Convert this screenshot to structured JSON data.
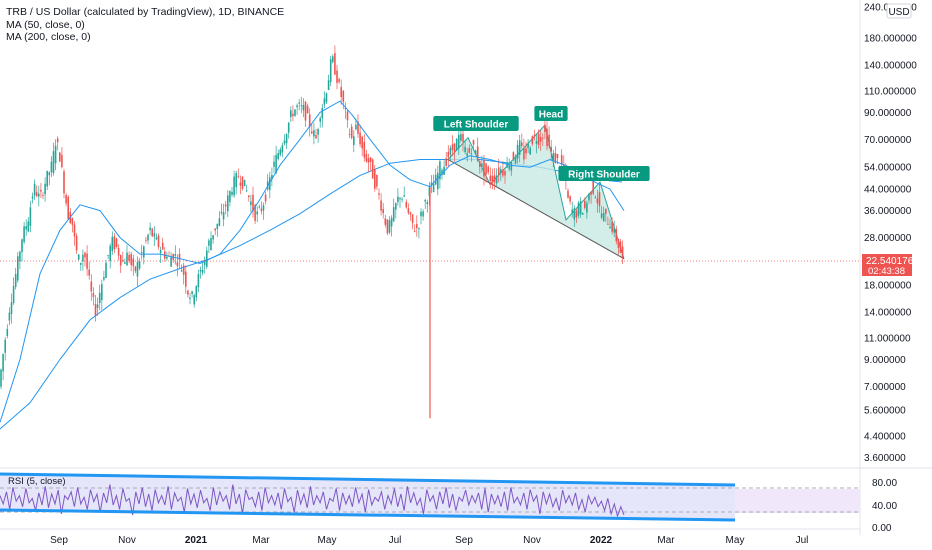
{
  "header": {
    "title": "TRB / US Dollar (calculated by TradingView), 1D, BINANCE",
    "ma50": "MA (50, close, 0)",
    "ma200": "MA (200, close, 0)"
  },
  "currency_badge": "USD",
  "rsi_label": "RSI (5, close)",
  "colors": {
    "up": "#26a69a",
    "down": "#ef5350",
    "ma50": "#2196f3",
    "ma200": "#2196f3",
    "pattern_fill": "#c8e8e2",
    "pattern_line": "#26a69a",
    "label_bg": "#089981",
    "price_tag": "#ef5350",
    "rsi_line": "#7e57c2",
    "rsi_channel": "#2196f3"
  },
  "chart_data": {
    "type": "candlestick",
    "scale": "log",
    "price_ticks": [
      "240.000000",
      "180.000000",
      "140.000000",
      "110.000000",
      "90.000000",
      "70.000000",
      "54.000000",
      "44.000000",
      "36.000000",
      "28.000000",
      "18.000000",
      "14.000000",
      "11.000000",
      "9.000000",
      "7.000000",
      "5.600000",
      "4.400000",
      "3.600000"
    ],
    "x_ticks": [
      "Sep",
      "Nov",
      "2021",
      "Mar",
      "May",
      "Jul",
      "Sep",
      "Nov",
      "2022",
      "Mar",
      "May",
      "Jul"
    ],
    "last_price": "22.540176",
    "countdown": "02:43:38",
    "pattern_labels": [
      "Left Shoulder",
      "Head",
      "Right Shoulder"
    ],
    "rsi_ticks": [
      "80.00",
      "40.00",
      "0.00"
    ],
    "price_path": [
      [
        0,
        6.5
      ],
      [
        6,
        10
      ],
      [
        12,
        15
      ],
      [
        18,
        20
      ],
      [
        24,
        28
      ],
      [
        30,
        33
      ],
      [
        36,
        45
      ],
      [
        42,
        40
      ],
      [
        48,
        48
      ],
      [
        54,
        55
      ],
      [
        58,
        70
      ],
      [
        62,
        60
      ],
      [
        66,
        45
      ],
      [
        70,
        35
      ],
      [
        74,
        33
      ],
      [
        78,
        25
      ],
      [
        82,
        22
      ],
      [
        86,
        25
      ],
      [
        90,
        20
      ],
      [
        94,
        16
      ],
      [
        98,
        14
      ],
      [
        102,
        17
      ],
      [
        108,
        22
      ],
      [
        114,
        27
      ],
      [
        120,
        25
      ],
      [
        124,
        22
      ],
      [
        130,
        24
      ],
      [
        136,
        20
      ],
      [
        142,
        23
      ],
      [
        148,
        27
      ],
      [
        152,
        30
      ],
      [
        158,
        27
      ],
      [
        164,
        25
      ],
      [
        170,
        23
      ],
      [
        176,
        24
      ],
      [
        182,
        22
      ],
      [
        186,
        20
      ],
      [
        190,
        17
      ],
      [
        194,
        16
      ],
      [
        198,
        18
      ],
      [
        202,
        20
      ],
      [
        206,
        22
      ],
      [
        210,
        26
      ],
      [
        216,
        30
      ],
      [
        222,
        33
      ],
      [
        228,
        38
      ],
      [
        234,
        45
      ],
      [
        240,
        50
      ],
      [
        246,
        46
      ],
      [
        252,
        40
      ],
      [
        258,
        34
      ],
      [
        264,
        37
      ],
      [
        270,
        45
      ],
      [
        276,
        55
      ],
      [
        282,
        65
      ],
      [
        288,
        75
      ],
      [
        294,
        90
      ],
      [
        300,
        95
      ],
      [
        306,
        92
      ],
      [
        312,
        80
      ],
      [
        318,
        70
      ],
      [
        322,
        90
      ],
      [
        326,
        100
      ],
      [
        330,
        120
      ],
      [
        334,
        150
      ],
      [
        338,
        130
      ],
      [
        342,
        110
      ],
      [
        346,
        95
      ],
      [
        350,
        78
      ],
      [
        354,
        70
      ],
      [
        358,
        78
      ],
      [
        362,
        70
      ],
      [
        366,
        60
      ],
      [
        370,
        58
      ],
      [
        374,
        52
      ],
      [
        378,
        45
      ],
      [
        382,
        40
      ],
      [
        386,
        34
      ],
      [
        390,
        30
      ],
      [
        394,
        33
      ],
      [
        398,
        38
      ],
      [
        402,
        42
      ],
      [
        406,
        40
      ],
      [
        410,
        35
      ],
      [
        414,
        32
      ],
      [
        418,
        30
      ],
      [
        422,
        33
      ],
      [
        426,
        38
      ],
      [
        430,
        42
      ],
      [
        434,
        45
      ],
      [
        438,
        48
      ],
      [
        442,
        54
      ],
      [
        446,
        55
      ],
      [
        450,
        60
      ],
      [
        456,
        65
      ],
      [
        462,
        72
      ],
      [
        466,
        65
      ],
      [
        470,
        60
      ],
      [
        474,
        66
      ],
      [
        478,
        62
      ],
      [
        482,
        56
      ],
      [
        486,
        52
      ],
      [
        490,
        50
      ],
      [
        494,
        48
      ],
      [
        498,
        50
      ],
      [
        502,
        53
      ],
      [
        506,
        52
      ],
      [
        510,
        56
      ],
      [
        514,
        58
      ],
      [
        518,
        62
      ],
      [
        522,
        66
      ],
      [
        526,
        60
      ],
      [
        530,
        65
      ],
      [
        534,
        70
      ],
      [
        538,
        72
      ],
      [
        542,
        70
      ],
      [
        546,
        76
      ],
      [
        550,
        68
      ],
      [
        554,
        60
      ],
      [
        558,
        58
      ],
      [
        562,
        56
      ],
      [
        566,
        52
      ],
      [
        570,
        40
      ],
      [
        574,
        36
      ],
      [
        578,
        35
      ],
      [
        582,
        38
      ],
      [
        586,
        36
      ],
      [
        590,
        40
      ],
      [
        594,
        45
      ],
      [
        598,
        42
      ],
      [
        602,
        36
      ],
      [
        606,
        34
      ],
      [
        610,
        33
      ],
      [
        614,
        31
      ],
      [
        618,
        28
      ],
      [
        622,
        25
      ],
      [
        625,
        22.54
      ]
    ],
    "spike_low": {
      "x": 430,
      "price": 5.2
    },
    "ma50_path": [
      [
        0,
        5
      ],
      [
        20,
        9
      ],
      [
        40,
        20
      ],
      [
        60,
        30
      ],
      [
        80,
        38
      ],
      [
        100,
        36
      ],
      [
        120,
        28
      ],
      [
        140,
        24
      ],
      [
        160,
        24
      ],
      [
        180,
        23
      ],
      [
        200,
        22
      ],
      [
        220,
        24
      ],
      [
        240,
        30
      ],
      [
        260,
        40
      ],
      [
        280,
        55
      ],
      [
        300,
        70
      ],
      [
        320,
        90
      ],
      [
        340,
        100
      ],
      [
        352,
        88
      ],
      [
        370,
        70
      ],
      [
        390,
        55
      ],
      [
        410,
        48
      ],
      [
        430,
        45
      ],
      [
        450,
        55
      ],
      [
        470,
        60
      ],
      [
        490,
        58
      ],
      [
        510,
        55
      ],
      [
        530,
        54
      ],
      [
        550,
        58
      ],
      [
        570,
        54
      ],
      [
        590,
        48
      ],
      [
        610,
        44
      ],
      [
        624,
        36
      ]
    ],
    "ma200_path": [
      [
        0,
        4.7
      ],
      [
        30,
        6
      ],
      [
        60,
        9
      ],
      [
        90,
        13
      ],
      [
        120,
        16
      ],
      [
        150,
        19
      ],
      [
        180,
        21
      ],
      [
        210,
        23
      ],
      [
        240,
        26
      ],
      [
        270,
        30
      ],
      [
        300,
        35
      ],
      [
        330,
        42
      ],
      [
        360,
        50
      ],
      [
        390,
        56
      ],
      [
        420,
        58
      ],
      [
        450,
        58
      ],
      [
        480,
        58
      ],
      [
        510,
        56
      ],
      [
        540,
        54
      ],
      [
        570,
        51
      ],
      [
        600,
        48
      ],
      [
        622,
        47
      ]
    ],
    "pattern_points": [
      [
        448,
        58
      ],
      [
        468,
        71
      ],
      [
        490,
        46
      ],
      [
        545,
        80
      ],
      [
        566,
        33
      ],
      [
        600,
        47
      ],
      [
        624,
        23
      ]
    ],
    "neckline": [
      [
        448,
        58
      ],
      [
        624,
        23
      ]
    ],
    "rsi_values": [
      55,
      40,
      62,
      30,
      70,
      45,
      55,
      35,
      68,
      42,
      50,
      28,
      60,
      38,
      72,
      33,
      58,
      40,
      65,
      22,
      55,
      48,
      62,
      35,
      70,
      40,
      52,
      30,
      66,
      44,
      58,
      25,
      60,
      42,
      75,
      38,
      55,
      30,
      68,
      45,
      50,
      20,
      62,
      40,
      70,
      35,
      58,
      28,
      66,
      42,
      55,
      38,
      72,
      30,
      60,
      45,
      52,
      25,
      68,
      40,
      58,
      33,
      65,
      42,
      50,
      28,
      70,
      38,
      62,
      45,
      55,
      30,
      75,
      40,
      58,
      22,
      66,
      48,
      52,
      35,
      62,
      28,
      70,
      42,
      55,
      38,
      60,
      30,
      68,
      44,
      52,
      25,
      65,
      40,
      58,
      33,
      72,
      38,
      55,
      42,
      62,
      30,
      50,
      45,
      68,
      28,
      60,
      40,
      55,
      35,
      70,
      42,
      58,
      25,
      66,
      38,
      52,
      45,
      62,
      30,
      55,
      40,
      68,
      35,
      58,
      28,
      72,
      42,
      60,
      38,
      50,
      22,
      66,
      45,
      55,
      30,
      62,
      40,
      70,
      33,
      58,
      28,
      52,
      45,
      65,
      38,
      55,
      42,
      60,
      30,
      68,
      25,
      58,
      40,
      55,
      35,
      62,
      28,
      70,
      42,
      52,
      38,
      60,
      30,
      66,
      45,
      55,
      22,
      62,
      40,
      58,
      35,
      50,
      28,
      65,
      42,
      55,
      38,
      60,
      30,
      48,
      25,
      55,
      40,
      52,
      35,
      45,
      28,
      50,
      22,
      40,
      18,
      35,
      20
    ]
  }
}
